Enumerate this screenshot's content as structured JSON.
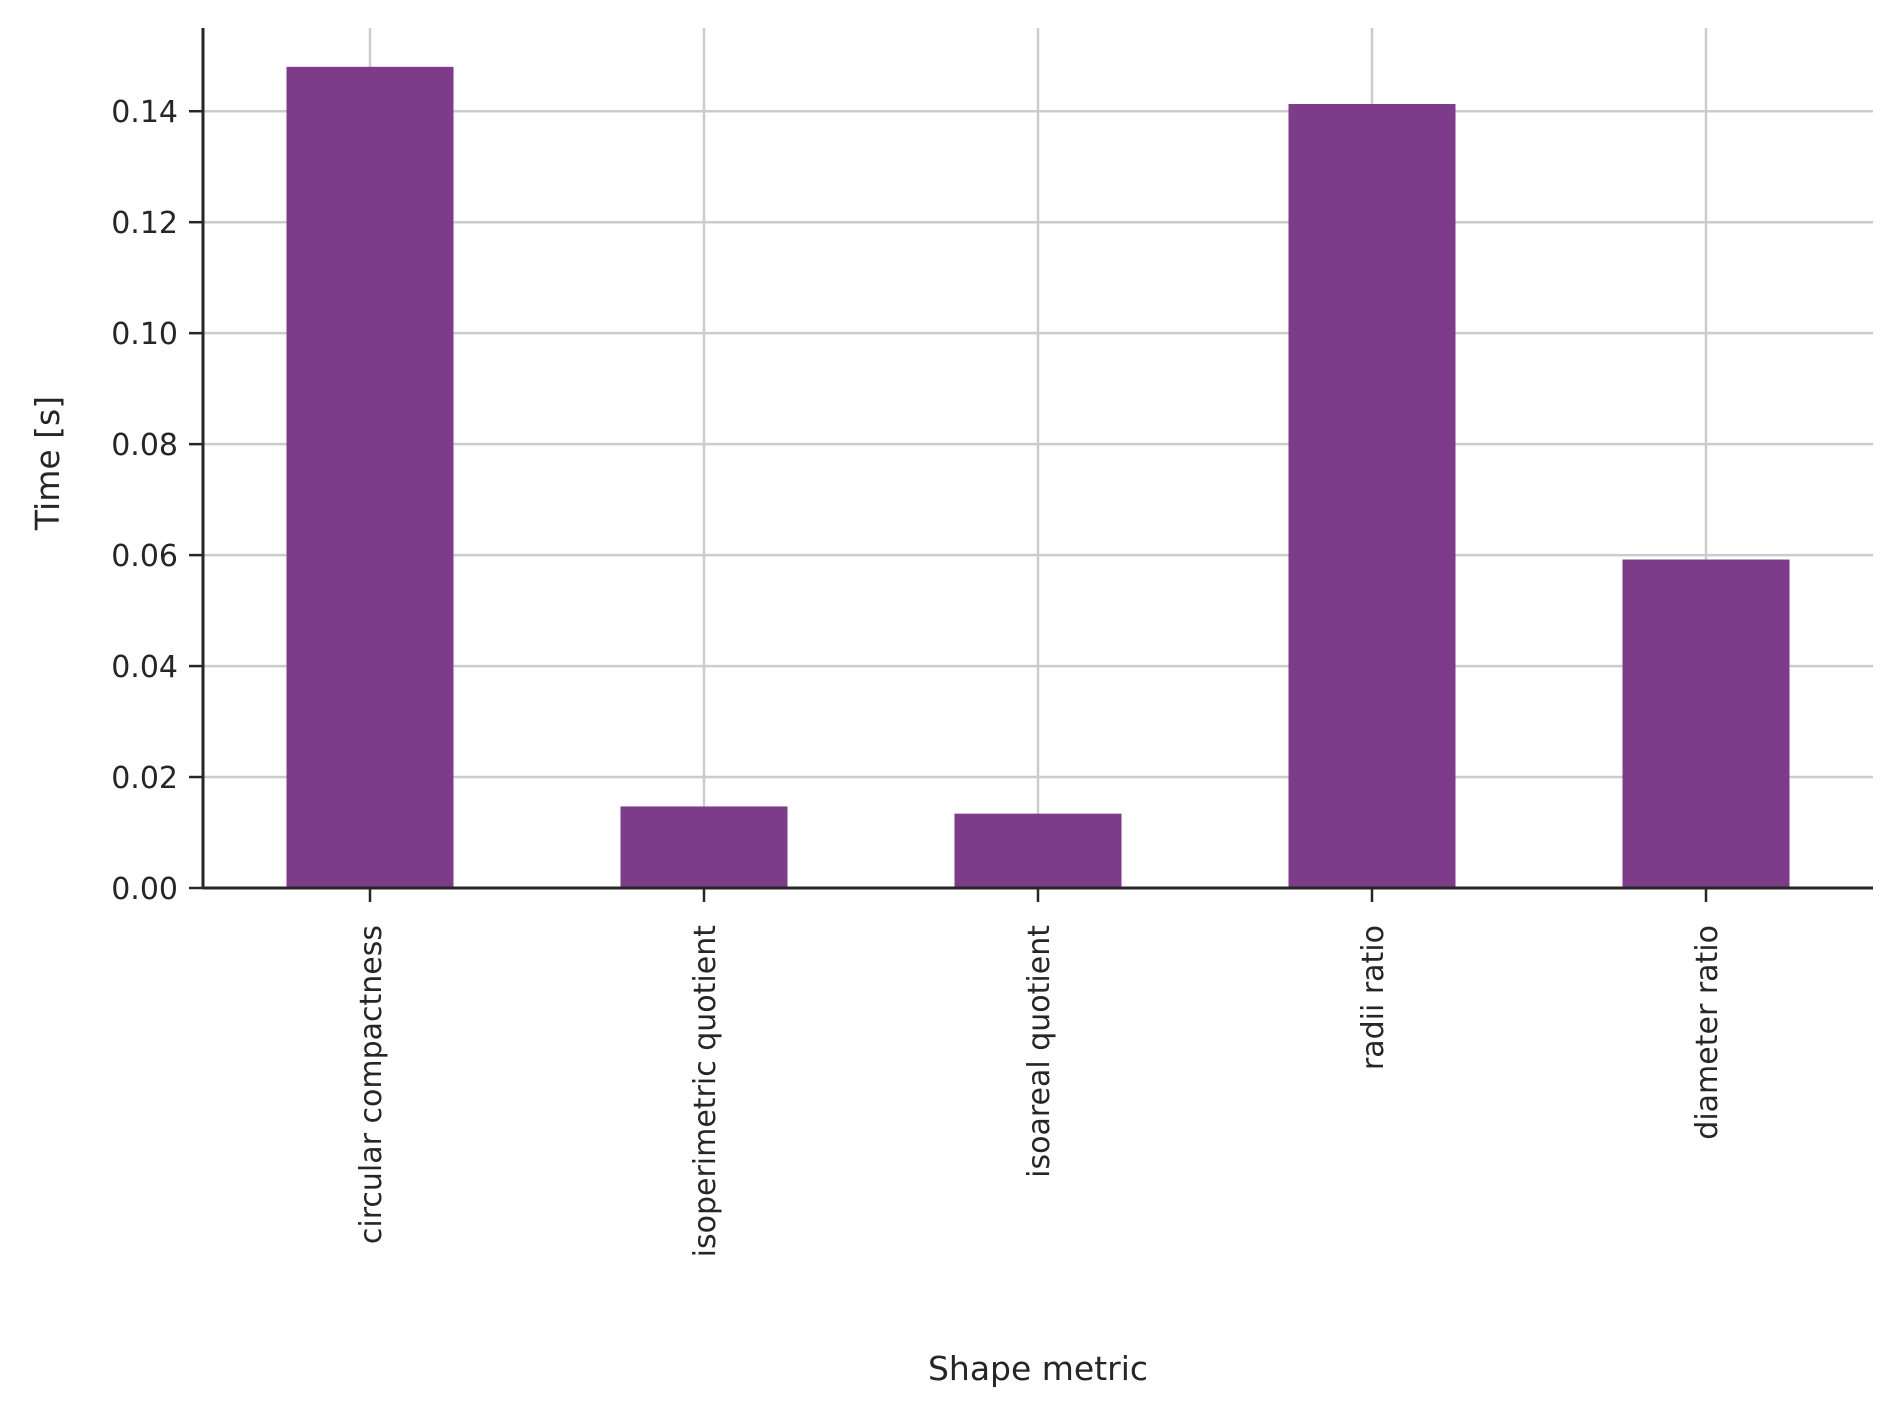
{
  "chart_data": {
    "type": "bar",
    "title": "",
    "xlabel": "Shape metric",
    "ylabel": "Time [s]",
    "categories": [
      "circular compactness",
      "isoperimetric quotient",
      "isoareal quotient",
      "radii ratio",
      "diameter ratio"
    ],
    "values": [
      0.148,
      0.0147,
      0.0134,
      0.1413,
      0.0592
    ],
    "ylim": [
      0,
      0.155
    ],
    "yticks": [
      "0.00",
      "0.02",
      "0.04",
      "0.06",
      "0.08",
      "0.10",
      "0.12",
      "0.14"
    ],
    "grid": true,
    "bar_color": "#7d3b8a",
    "grid_color": "#cccccc",
    "axis_color": "#262626"
  }
}
